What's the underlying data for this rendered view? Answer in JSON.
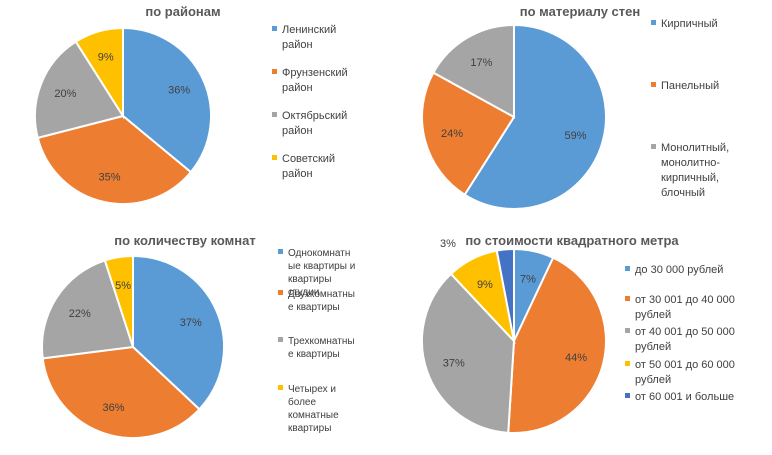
{
  "chart_data": [
    {
      "type": "pie",
      "title": "по районам",
      "categories": [
        "Ленинский район",
        "Фрунзенский район",
        "Октябрьский район",
        "Советский район"
      ],
      "values": [
        36,
        35,
        20,
        9
      ],
      "value_labels": [
        "36%",
        "35%",
        "20%",
        "9%"
      ],
      "legend_lines": [
        [
          "Ленинский",
          "район"
        ],
        [
          "Фрунзенский",
          "район"
        ],
        [
          "Октябрьский",
          "район"
        ],
        [
          "Советский",
          "район"
        ]
      ],
      "legend_position": "right",
      "start_angle_deg": 0,
      "colors": [
        "#5b9bd5",
        "#ed7d31",
        "#a5a5a5",
        "#ffc000"
      ]
    },
    {
      "type": "pie",
      "title": "по материалу стен",
      "categories": [
        "Кирпичный",
        "Панельный",
        "Монолитный, монолитно-кирпичный, блочный"
      ],
      "values": [
        59,
        24,
        17
      ],
      "value_labels": [
        "59%",
        "24%",
        "17%"
      ],
      "legend_lines": [
        [
          "Кирпичный"
        ],
        [
          "Панельный"
        ],
        [
          "Монолитный,",
          "монолитно-",
          "кирпичный,",
          "блочный"
        ]
      ],
      "legend_position": "right",
      "start_angle_deg": 0,
      "colors": [
        "#5b9bd5",
        "#ed7d31",
        "#a5a5a5"
      ]
    },
    {
      "type": "pie",
      "title": "по количеству комнат",
      "categories": [
        "Однокомнатные квартиры и квартиры студии",
        "Двухкомнатные квартиры",
        "Трехкомнатные квартиры",
        "Четырех и более комнатные квартиры"
      ],
      "values": [
        37,
        36,
        22,
        5
      ],
      "value_labels": [
        "37%",
        "36%",
        "22%",
        "5%"
      ],
      "legend_lines": [
        [
          "Однокомнатн",
          "ые квартиры и",
          "квартиры",
          "студии"
        ],
        [
          "Двухкомнатны",
          "е квартиры"
        ],
        [
          "Трехкомнатны",
          "е квартиры"
        ],
        [
          "Четырех и",
          "более",
          "комнатные",
          "квартиры"
        ]
      ],
      "legend_position": "right",
      "start_angle_deg": 0,
      "colors": [
        "#5b9bd5",
        "#ed7d31",
        "#a5a5a5",
        "#ffc000"
      ]
    },
    {
      "type": "pie",
      "title": "по стоимости квадратного метра",
      "categories": [
        "до 30 000 рублей",
        "от 30 001 до 40 000 рублей",
        "от 40 001 до 50 000 рублей",
        "от 50 001 до 60 000 рублей",
        "от 60 001 и больше"
      ],
      "values": [
        7,
        44,
        37,
        9,
        3
      ],
      "value_labels": [
        "7%",
        "44%",
        "37%",
        "9%",
        "3%"
      ],
      "legend_lines": [
        [
          "до 30 000 рублей"
        ],
        [
          "от 30 001 до 40 000",
          "рублей"
        ],
        [
          "от 40 001 до 50 000",
          "рублей"
        ],
        [
          "от 50 001 до 60 000",
          "рублей"
        ],
        [
          "от 60 001 и больше"
        ]
      ],
      "legend_position": "right",
      "start_angle_deg": 0,
      "colors": [
        "#5b9bd5",
        "#ed7d31",
        "#a5a5a5",
        "#ffc000",
        "#4472c4"
      ]
    }
  ]
}
